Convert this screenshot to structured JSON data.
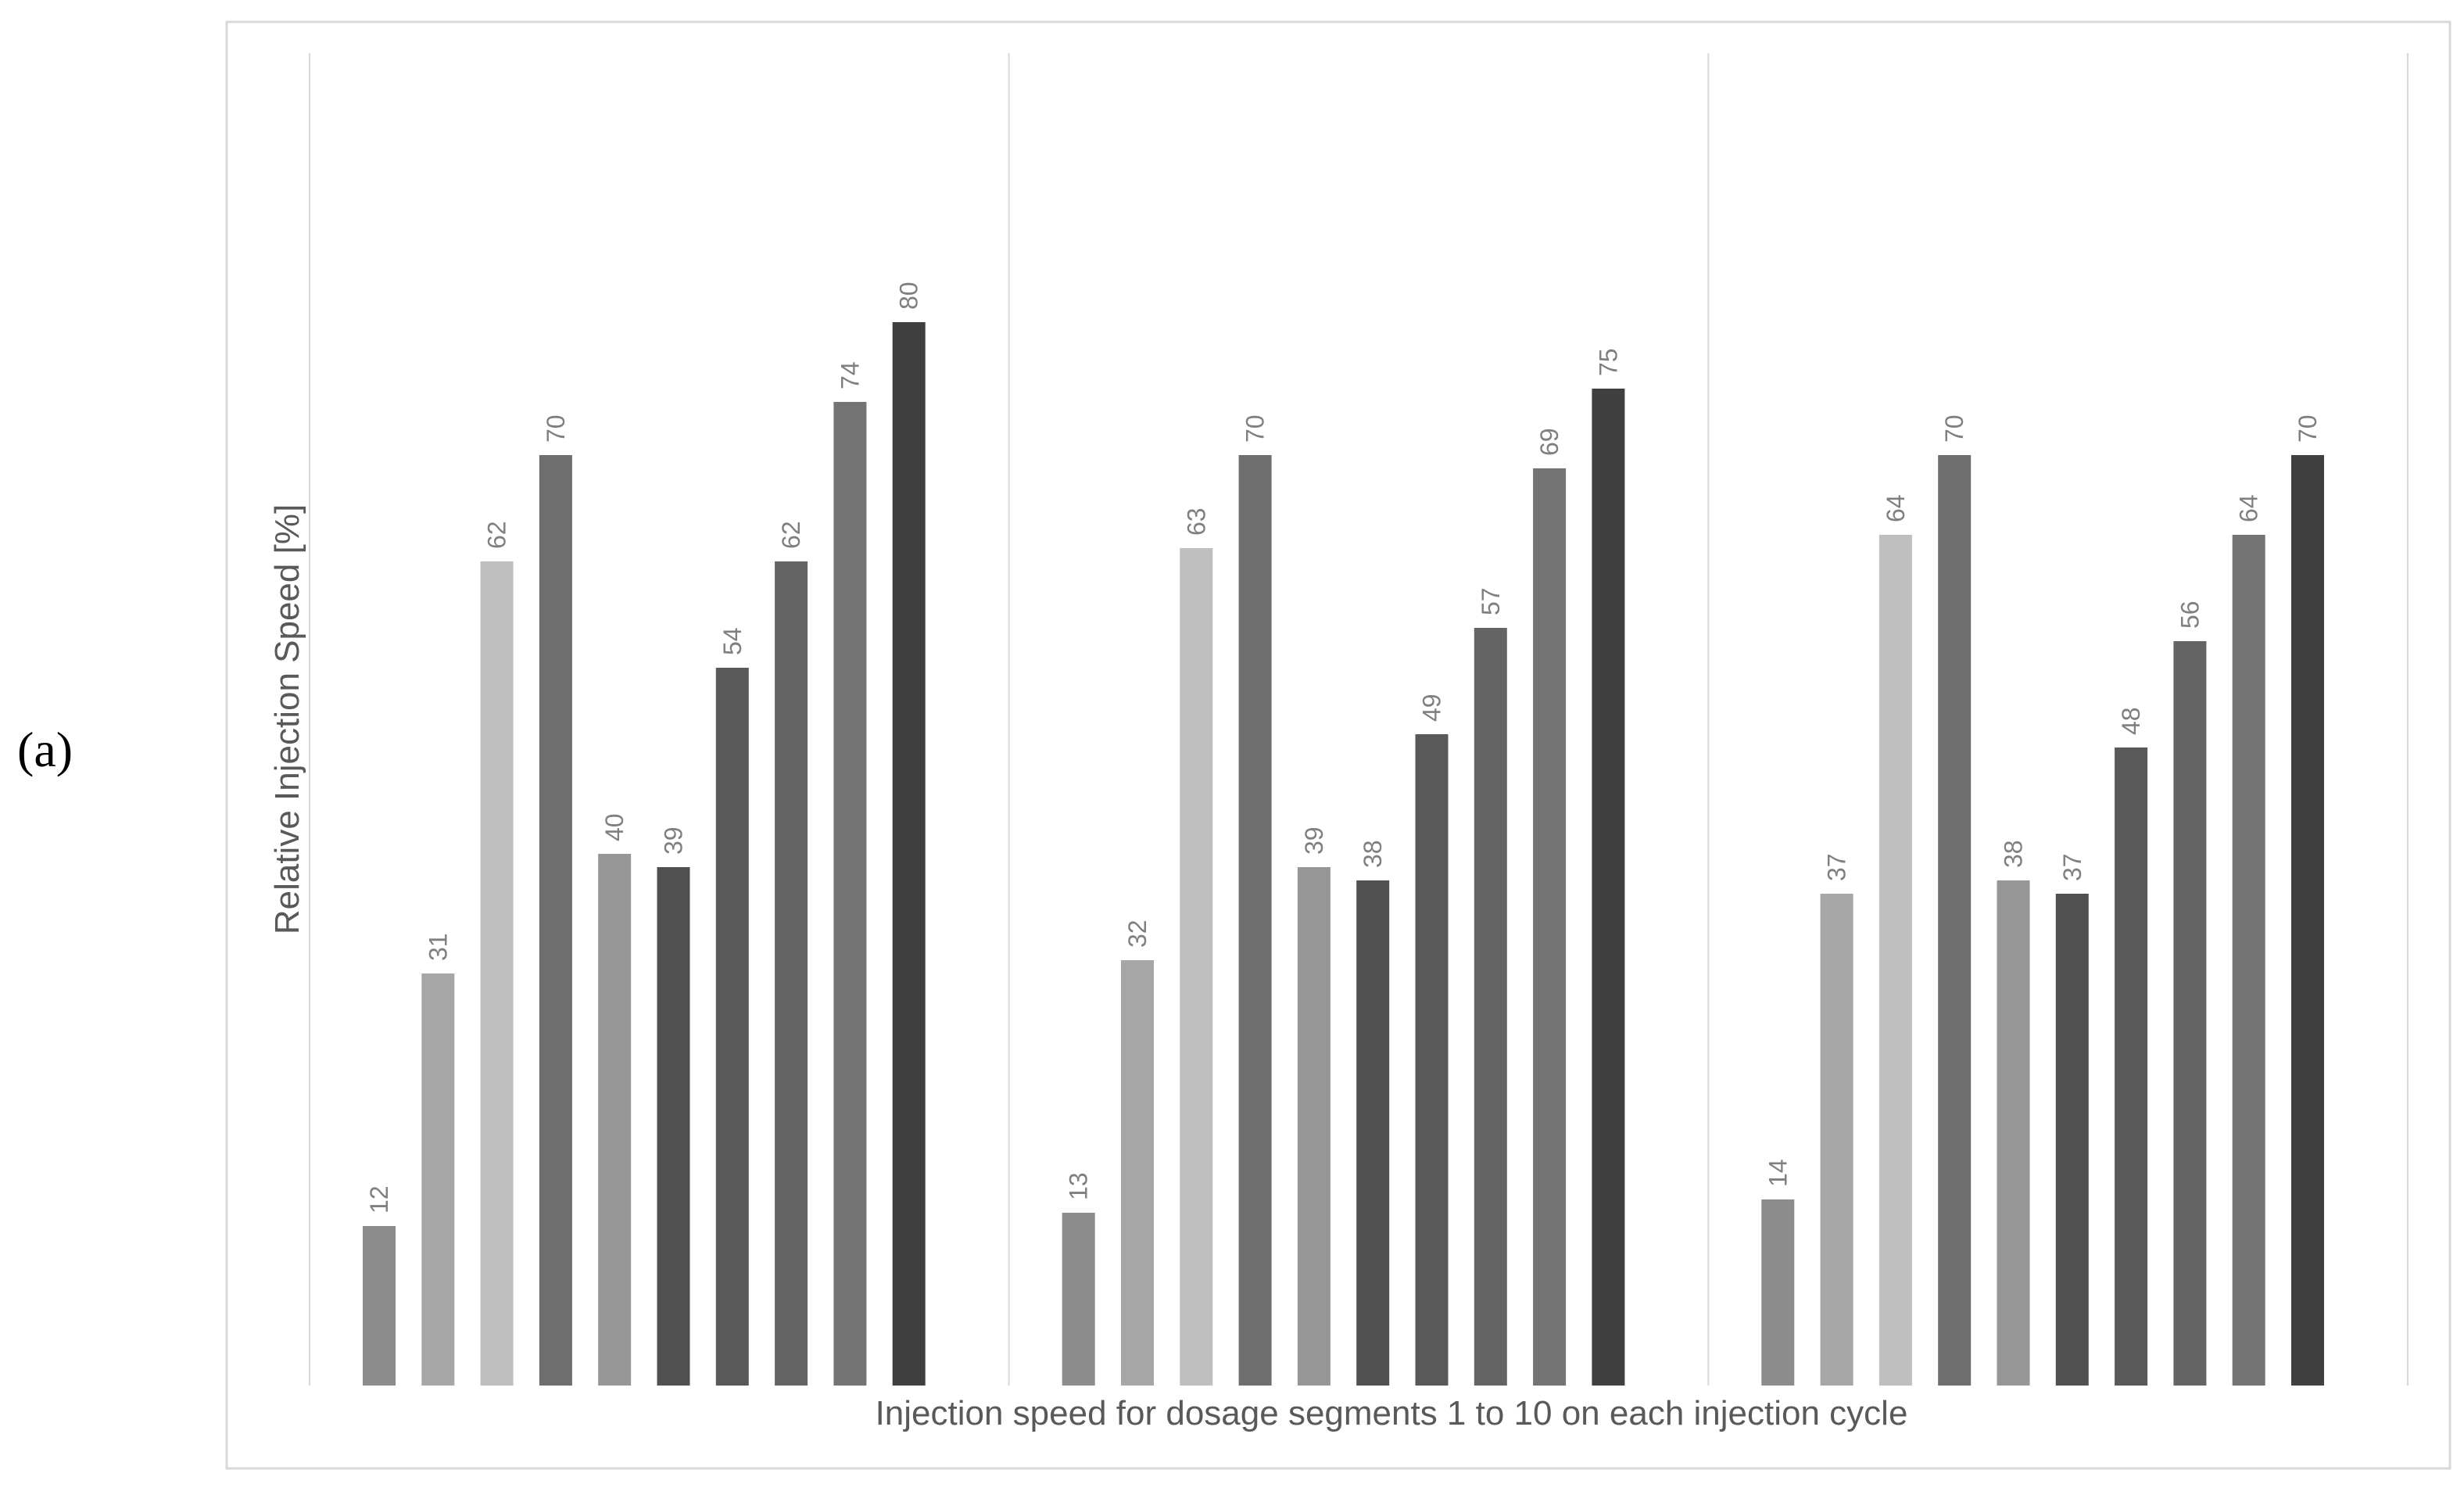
{
  "panel_label": "(a)",
  "chart_data": {
    "type": "bar",
    "title": "",
    "xlabel": "Injection speed for dosage segments 1 to 10 on each injection cycle",
    "ylabel": "Relative Injection Speed [%]",
    "ylim": [
      0,
      100
    ],
    "grid": false,
    "legend": "none",
    "groups": [
      {
        "values": [
          12,
          31,
          62,
          70,
          40,
          39,
          54,
          62,
          74,
          80
        ]
      },
      {
        "values": [
          13,
          32,
          63,
          70,
          39,
          38,
          49,
          57,
          69,
          75
        ]
      },
      {
        "values": [
          14,
          37,
          64,
          70,
          38,
          37,
          48,
          56,
          64,
          70
        ]
      }
    ],
    "segment_colors": [
      "#8c8c8c",
      "#a6a6a6",
      "#bfbfbf",
      "#6e6e6e",
      "#969696",
      "#505050",
      "#595959",
      "#646464",
      "#737373",
      "#404040"
    ],
    "frame_color": "#d9d9d9",
    "label_color": "#7f7f7f"
  }
}
